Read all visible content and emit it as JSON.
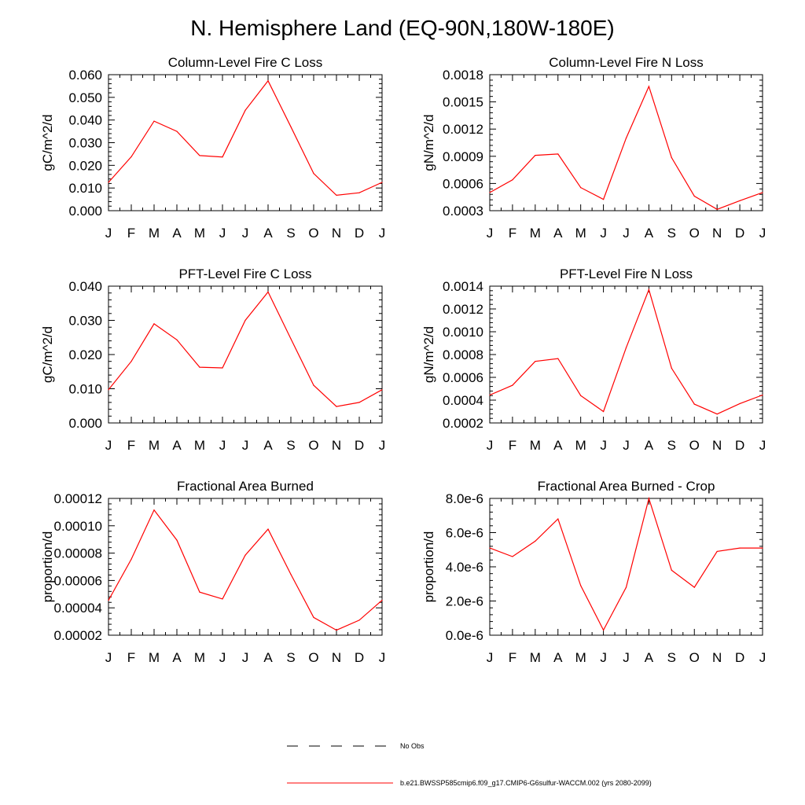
{
  "title": "N. Hemisphere Land (EQ-90N,180W-180E)",
  "months": [
    "J",
    "F",
    "M",
    "A",
    "M",
    "J",
    "J",
    "A",
    "S",
    "O",
    "N",
    "D",
    "J"
  ],
  "colors": {
    "model_line": "#ff0000",
    "obs_line": "#000000",
    "axis": "#000000"
  },
  "legend": {
    "obs_label": "No Obs",
    "model_label": "b.e21.BWSSP585cmip6.f09_g17.CMIP6-G6sulfur-WACCM.002 (yrs 2080-2099)"
  },
  "chart_data": [
    {
      "type": "line",
      "title": "Column-Level Fire C Loss",
      "ylabel": "gC/m^2/d",
      "ylim": [
        0.0,
        0.06
      ],
      "yticks": [
        "0.000",
        "0.010",
        "0.020",
        "0.030",
        "0.040",
        "0.050",
        "0.060"
      ],
      "x": [
        "J",
        "F",
        "M",
        "A",
        "M",
        "J",
        "J",
        "A",
        "S",
        "O",
        "N",
        "D",
        "J"
      ],
      "series": [
        {
          "values": [
            0.0125,
            0.0238,
            0.0395,
            0.035,
            0.0243,
            0.0237,
            0.0443,
            0.0573,
            0.037,
            0.0164,
            0.0068,
            0.0079,
            0.0125
          ]
        }
      ]
    },
    {
      "type": "line",
      "title": "Column-Level Fire N Loss",
      "ylabel": "gN/m^2/d",
      "ylim": [
        0.0003,
        0.0018
      ],
      "yticks": [
        "0.0003",
        "0.0006",
        "0.0009",
        "0.0012",
        "0.0015",
        "0.0018"
      ],
      "x": [
        "J",
        "F",
        "M",
        "A",
        "M",
        "J",
        "J",
        "A",
        "S",
        "O",
        "N",
        "D",
        "J"
      ],
      "series": [
        {
          "values": [
            0.0005,
            0.00064,
            0.00091,
            0.000925,
            0.000555,
            0.000425,
            0.0011,
            0.00167,
            0.000885,
            0.00046,
            0.000315,
            0.00041,
            0.0005
          ]
        }
      ]
    },
    {
      "type": "line",
      "title": "PFT-Level Fire C Loss",
      "ylabel": "gC/m^2/d",
      "ylim": [
        0.0,
        0.04
      ],
      "yticks": [
        "0.000",
        "0.010",
        "0.020",
        "0.030",
        "0.040"
      ],
      "x": [
        "J",
        "F",
        "M",
        "A",
        "M",
        "J",
        "J",
        "A",
        "S",
        "O",
        "N",
        "D",
        "J"
      ],
      "series": [
        {
          "values": [
            0.0097,
            0.018,
            0.029,
            0.0243,
            0.0163,
            0.0161,
            0.03,
            0.0383,
            0.0246,
            0.011,
            0.0048,
            0.006,
            0.0097
          ]
        }
      ]
    },
    {
      "type": "line",
      "title": "PFT-Level Fire N Loss",
      "ylabel": "gN/m^2/d",
      "ylim": [
        0.0002,
        0.0014
      ],
      "yticks": [
        "0.0002",
        "0.0004",
        "0.0006",
        "0.0008",
        "0.0010",
        "0.0012",
        "0.0014"
      ],
      "x": [
        "J",
        "F",
        "M",
        "A",
        "M",
        "J",
        "J",
        "A",
        "S",
        "O",
        "N",
        "D",
        "J"
      ],
      "series": [
        {
          "values": [
            0.000445,
            0.00053,
            0.00074,
            0.000765,
            0.00044,
            0.0003,
            0.00086,
            0.00137,
            0.00068,
            0.000365,
            0.000278,
            0.00037,
            0.000445
          ]
        }
      ]
    },
    {
      "type": "line",
      "title": "Fractional Area Burned",
      "ylabel": "proportion/d",
      "ylim": [
        2e-05,
        0.00012
      ],
      "yticks": [
        "0.00002",
        "0.00004",
        "0.00006",
        "0.00008",
        "0.00010",
        "0.00012"
      ],
      "x": [
        "J",
        "F",
        "M",
        "A",
        "M",
        "J",
        "J",
        "A",
        "S",
        "O",
        "N",
        "D",
        "J"
      ],
      "series": [
        {
          "values": [
            4.55e-05,
            7.55e-05,
            0.0001115,
            8.95e-05,
            5.15e-05,
            4.65e-05,
            7.85e-05,
            9.75e-05,
            6.45e-05,
            3.3e-05,
            2.37e-05,
            3.1e-05,
            4.55e-05
          ]
        }
      ]
    },
    {
      "type": "line",
      "title": "Fractional Area Burned - Crop",
      "ylabel": "proportion/d",
      "ylim": [
        0.0,
        8e-06
      ],
      "yticks": [
        "0.0e-6",
        "2.0e-6",
        "4.0e-6",
        "6.0e-6",
        "8.0e-6"
      ],
      "x": [
        "J",
        "F",
        "M",
        "A",
        "M",
        "J",
        "J",
        "A",
        "S",
        "O",
        "N",
        "D",
        "J"
      ],
      "series": [
        {
          "values": [
            5.1e-06,
            4.6e-06,
            5.5e-06,
            6.8e-06,
            2.9e-06,
            3e-07,
            2.8e-06,
            8e-06,
            3.8e-06,
            2.8e-06,
            4.9e-06,
            5.1e-06,
            5.1e-06
          ]
        }
      ]
    }
  ]
}
